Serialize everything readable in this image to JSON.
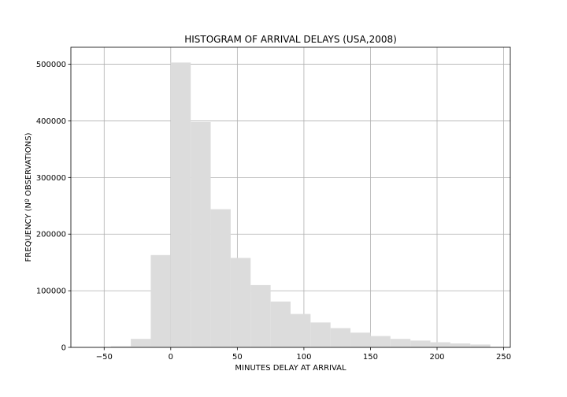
{
  "chart_data": {
    "type": "bar",
    "title": "HISTOGRAM OF ARRIVAL DELAYS (USA,2008)",
    "xlabel": "MINUTES DELAY AT ARRIVAL",
    "ylabel": "FREQUENCY (Nº OBSERVATIONS)",
    "xlim": [
      -75,
      255
    ],
    "ylim": [
      0,
      530000
    ],
    "xticks": [
      -50,
      0,
      50,
      100,
      150,
      200,
      250
    ],
    "xtick_labels": [
      "−50",
      "0",
      "50",
      "100",
      "150",
      "200",
      "250"
    ],
    "yticks": [
      0,
      100000,
      200000,
      300000,
      400000,
      500000
    ],
    "ytick_labels": [
      "0",
      "100000",
      "200000",
      "300000",
      "400000",
      "500000"
    ],
    "grid": true,
    "bar_color": "#dcdcdc",
    "bins": [
      {
        "x0": -60,
        "x1": -45,
        "value": 0
      },
      {
        "x0": -45,
        "x1": -30,
        "value": 2000
      },
      {
        "x0": -30,
        "x1": -15,
        "value": 15000
      },
      {
        "x0": -15,
        "x1": 0,
        "value": 163000
      },
      {
        "x0": 0,
        "x1": 15,
        "value": 503000
      },
      {
        "x0": 15,
        "x1": 30,
        "value": 398000
      },
      {
        "x0": 30,
        "x1": 45,
        "value": 244000
      },
      {
        "x0": 45,
        "x1": 60,
        "value": 158000
      },
      {
        "x0": 60,
        "x1": 75,
        "value": 110000
      },
      {
        "x0": 75,
        "x1": 90,
        "value": 81000
      },
      {
        "x0": 90,
        "x1": 105,
        "value": 59000
      },
      {
        "x0": 105,
        "x1": 120,
        "value": 44000
      },
      {
        "x0": 120,
        "x1": 135,
        "value": 34000
      },
      {
        "x0": 135,
        "x1": 150,
        "value": 26000
      },
      {
        "x0": 150,
        "x1": 165,
        "value": 20000
      },
      {
        "x0": 165,
        "x1": 180,
        "value": 15000
      },
      {
        "x0": 180,
        "x1": 195,
        "value": 12000
      },
      {
        "x0": 195,
        "x1": 210,
        "value": 9000
      },
      {
        "x0": 210,
        "x1": 225,
        "value": 7000
      },
      {
        "x0": 225,
        "x1": 240,
        "value": 5000
      }
    ]
  }
}
